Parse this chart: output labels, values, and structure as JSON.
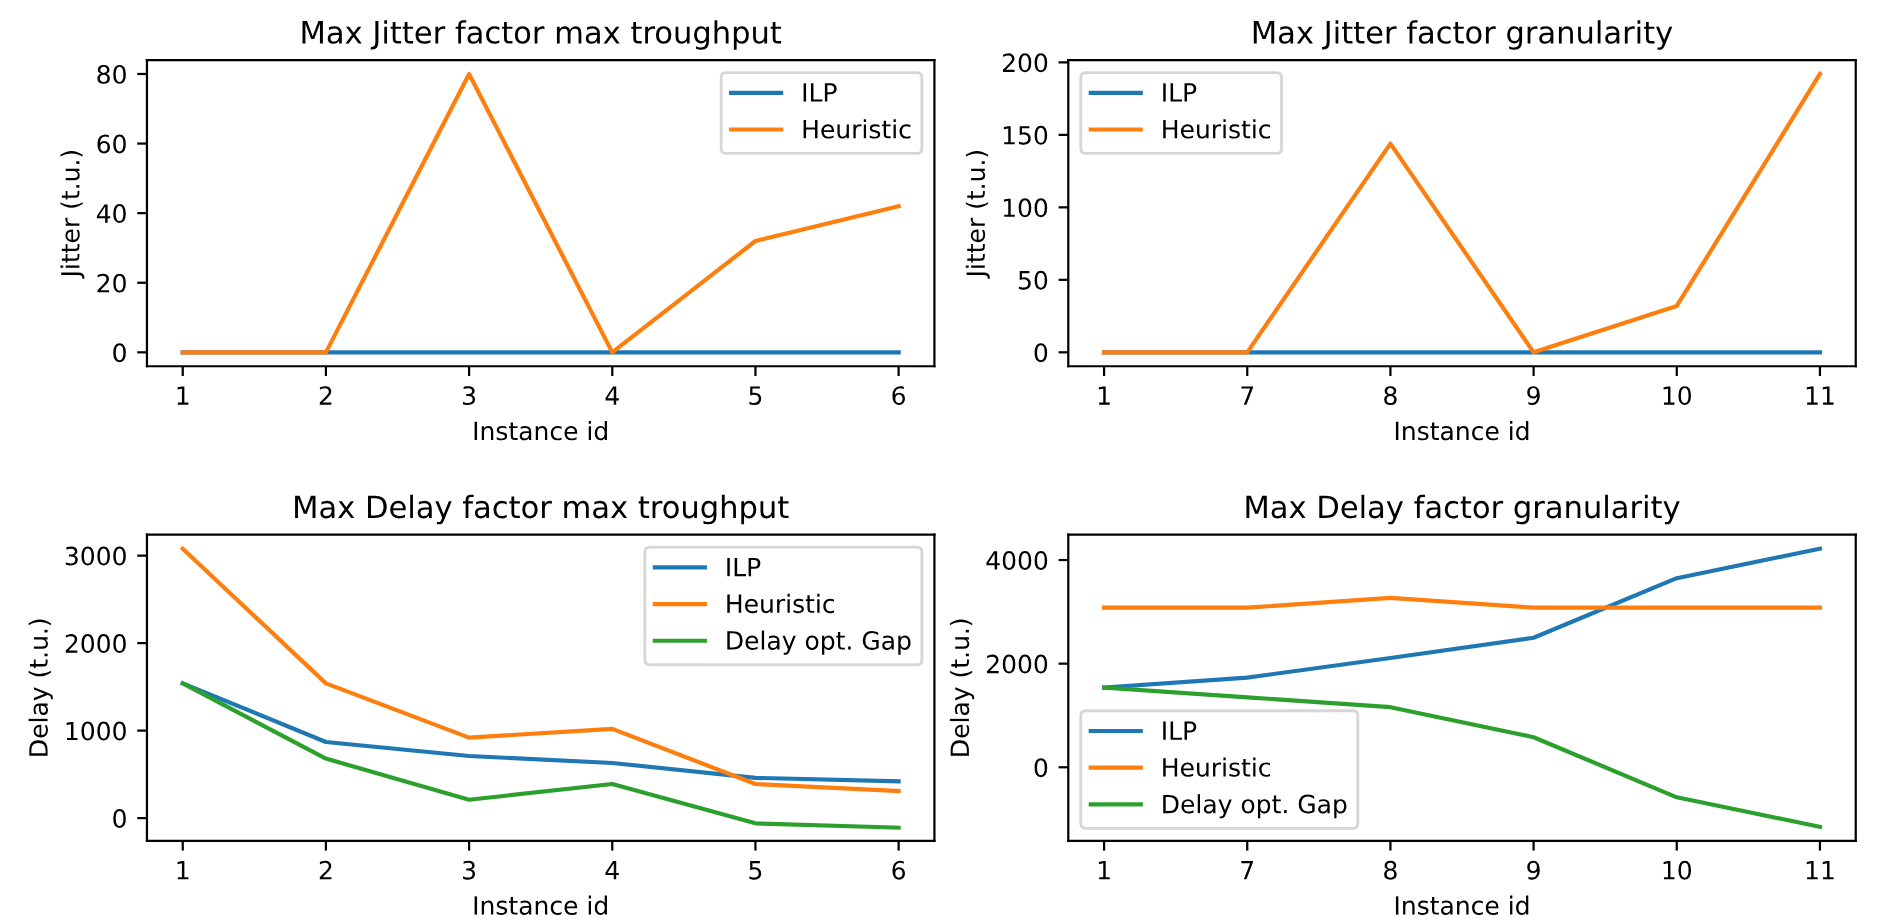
{
  "chart_data": [
    {
      "type": "line",
      "title": "Max Jitter factor max troughput",
      "xlabel": "Instance id",
      "ylabel": "Jitter (t.u.)",
      "categories": [
        "1",
        "2",
        "3",
        "4",
        "5",
        "6"
      ],
      "ylim": [
        -4,
        84
      ],
      "yticks": [
        0,
        20,
        40,
        60,
        80
      ],
      "legend": "top right",
      "grid": false,
      "series": [
        {
          "name": "ILP",
          "color": "#1f77b4",
          "values": [
            0,
            0,
            0,
            0,
            0,
            0
          ]
        },
        {
          "name": "Heuristic",
          "color": "#ff7f0e",
          "values": [
            0,
            0,
            80,
            0,
            32,
            42
          ]
        }
      ]
    },
    {
      "type": "line",
      "title": "Max Jitter factor granularity",
      "xlabel": "Instance id",
      "ylabel": "Jitter (t.u.)",
      "categories": [
        "1",
        "7",
        "8",
        "9",
        "10",
        "11"
      ],
      "ylim": [
        -9.6,
        201.6
      ],
      "yticks": [
        0,
        50,
        100,
        150,
        200
      ],
      "legend": "top left",
      "grid": false,
      "series": [
        {
          "name": "ILP",
          "color": "#1f77b4",
          "values": [
            0,
            0,
            0,
            0,
            0,
            0
          ]
        },
        {
          "name": "Heuristic",
          "color": "#ff7f0e",
          "values": [
            0,
            0,
            144,
            0,
            32,
            192
          ]
        }
      ]
    },
    {
      "type": "line",
      "title": "Max Delay factor max troughput",
      "xlabel": "Instance id",
      "ylabel": "Delay (t.u.)",
      "categories": [
        "1",
        "2",
        "3",
        "4",
        "5",
        "6"
      ],
      "ylim": [
        -260,
        3240
      ],
      "yticks": [
        0,
        1000,
        2000,
        3000
      ],
      "legend": "top right",
      "grid": false,
      "series": [
        {
          "name": "ILP",
          "color": "#1f77b4",
          "values": [
            1540,
            870,
            710,
            630,
            460,
            420
          ]
        },
        {
          "name": "Heuristic",
          "color": "#ff7f0e",
          "values": [
            3080,
            1540,
            920,
            1020,
            390,
            310
          ]
        },
        {
          "name": "Delay opt. Gap",
          "color": "#2ca02c",
          "values": [
            1540,
            680,
            210,
            390,
            -60,
            -110
          ]
        }
      ]
    },
    {
      "type": "line",
      "title": "Max Delay factor granularity",
      "xlabel": "Instance id",
      "ylabel": "Delay (t.u.)",
      "categories": [
        "1",
        "7",
        "8",
        "9",
        "10",
        "11"
      ],
      "ylim": [
        -1420,
        4490
      ],
      "yticks": [
        0,
        2000,
        4000
      ],
      "legend": "bottom left",
      "grid": false,
      "series": [
        {
          "name": "ILP",
          "color": "#1f77b4",
          "values": [
            1540,
            1730,
            2110,
            2500,
            3650,
            4220
          ]
        },
        {
          "name": "Heuristic",
          "color": "#ff7f0e",
          "values": [
            3080,
            3080,
            3270,
            3080,
            3080,
            3080
          ]
        },
        {
          "name": "Delay opt. Gap",
          "color": "#2ca02c",
          "values": [
            1540,
            1350,
            1160,
            580,
            -580,
            -1150
          ]
        }
      ]
    }
  ]
}
